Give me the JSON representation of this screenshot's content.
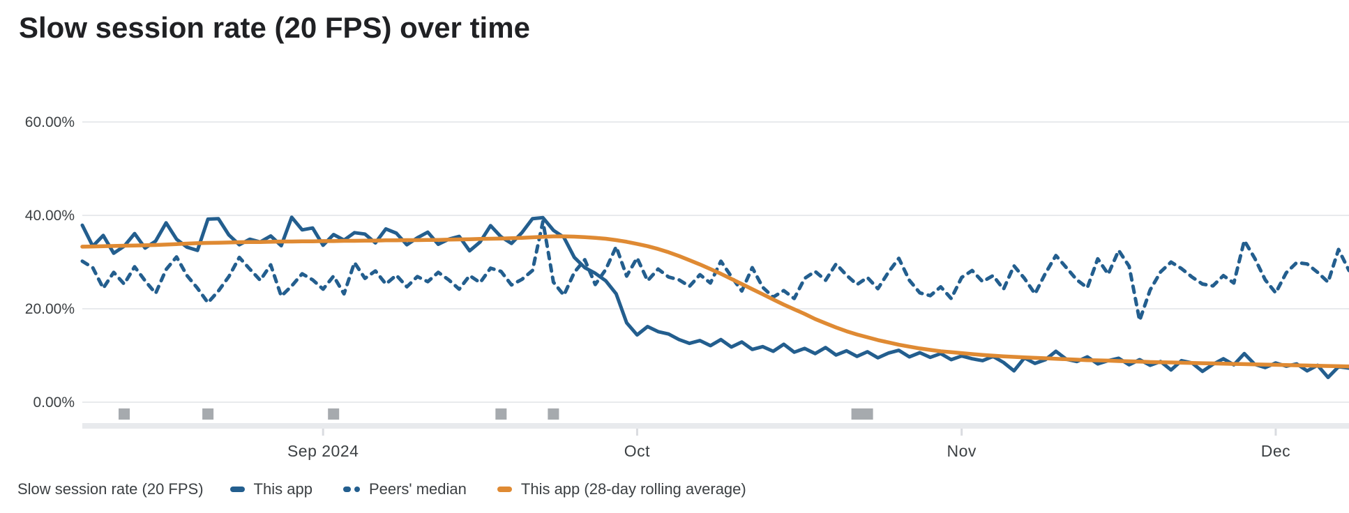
{
  "header": {
    "title": "Slow session rate (20 FPS) over time"
  },
  "legend": {
    "metric_label": "Slow session rate (20 FPS)",
    "items": [
      {
        "label": "This app",
        "color": "#235e8e",
        "style": "solid"
      },
      {
        "label": "Peers' median",
        "color": "#235e8e",
        "style": "dashed"
      },
      {
        "label": "This app (28-day rolling average)",
        "color": "#df8a33",
        "style": "solid"
      }
    ]
  },
  "colors": {
    "app_line": "#235e8e",
    "peers_line": "#235e8e",
    "rolling_line": "#df8a33",
    "gridline": "#e8eaed",
    "axis_band": "#e8eaed",
    "axis_tick": "#dadce0",
    "axis_text": "#3c4043",
    "title_text": "#202124",
    "release_marker": "#a6aaae"
  },
  "chart_data": {
    "type": "line",
    "title": "Slow session rate (20 FPS) over time",
    "xlabel": "",
    "ylabel": "Slow session rate (20 FPS)",
    "x_unit": "day",
    "x_start_date": "2024-08-09",
    "x_end_date": "2024-12-08",
    "ylim": [
      0,
      60
    ],
    "grid": "horizontal",
    "legend_position": "bottom",
    "y_ticks": [
      {
        "value": 60,
        "label": "60.00%"
      },
      {
        "value": 40,
        "label": "40.00%"
      },
      {
        "value": 20,
        "label": "20.00%"
      },
      {
        "value": 0,
        "label": "0.00%"
      }
    ],
    "x_ticks": [
      {
        "day": 23,
        "label": "Sep 2024"
      },
      {
        "day": 53,
        "label": "Oct"
      },
      {
        "day": 84,
        "label": "Nov"
      },
      {
        "day": 114,
        "label": "Dec"
      }
    ],
    "series": [
      {
        "name": "This app",
        "color": "#235e8e",
        "dash": false,
        "width": 5,
        "values": [
          37.9,
          33.4,
          35.7,
          31.9,
          33.4,
          36.1,
          33.0,
          34.5,
          38.4,
          34.9,
          33.2,
          32.5,
          39.2,
          39.3,
          35.8,
          33.7,
          34.9,
          34.3,
          35.6,
          33.5,
          39.6,
          36.9,
          37.3,
          33.6,
          35.9,
          34.7,
          36.3,
          36.0,
          34.1,
          37.1,
          36.2,
          33.7,
          35.2,
          36.4,
          33.8,
          34.9,
          35.5,
          32.4,
          34.3,
          37.8,
          35.4,
          34.0,
          36.3,
          39.3,
          39.5,
          36.8,
          35.3,
          31.0,
          28.8,
          27.6,
          26.0,
          23.2,
          17.0,
          14.4,
          16.2,
          15.1,
          14.6,
          13.4,
          12.6,
          13.2,
          12.1,
          13.4,
          11.8,
          12.9,
          11.3,
          11.9,
          10.9,
          12.4,
          10.7,
          11.5,
          10.4,
          11.7,
          10.1,
          11.0,
          9.8,
          10.8,
          9.5,
          10.5,
          11.1,
          9.7,
          10.6,
          9.6,
          10.4,
          9.1,
          9.9,
          9.3,
          8.9,
          9.8,
          8.5,
          6.7,
          9.5,
          8.3,
          9.1,
          10.9,
          9.2,
          8.7,
          9.7,
          8.2,
          8.9,
          9.4,
          8.0,
          9.1,
          7.9,
          8.7,
          6.9,
          8.9,
          8.4,
          6.6,
          8.1,
          9.3,
          8.0,
          10.4,
          8.1,
          7.4,
          8.4,
          7.7,
          8.2,
          6.7,
          7.9,
          5.3,
          7.6,
          7.3
        ]
      },
      {
        "name": "Peers' median",
        "color": "#235e8e",
        "dash": true,
        "width": 5,
        "values": [
          30.2,
          28.8,
          24.4,
          27.8,
          25.3,
          29.0,
          26.0,
          23.3,
          28.4,
          31.1,
          27.1,
          24.4,
          21.3,
          23.8,
          26.9,
          31.0,
          28.5,
          26.1,
          29.4,
          22.7,
          24.9,
          27.5,
          26.2,
          24.2,
          27.0,
          23.2,
          29.9,
          26.5,
          28.1,
          25.3,
          27.2,
          24.7,
          26.9,
          25.8,
          27.8,
          26.2,
          24.2,
          27.1,
          25.6,
          28.7,
          28.0,
          25.1,
          26.3,
          28.2,
          38.7,
          25.7,
          22.9,
          27.8,
          30.5,
          25.2,
          28.4,
          33.3,
          27.0,
          30.9,
          26.0,
          28.5,
          26.8,
          26.2,
          24.8,
          27.3,
          25.5,
          30.2,
          26.9,
          23.8,
          28.8,
          24.6,
          22.5,
          23.9,
          22.2,
          26.5,
          28.0,
          26.1,
          29.6,
          27.2,
          25.2,
          26.7,
          24.3,
          27.8,
          30.8,
          26.1,
          23.4,
          22.8,
          24.7,
          22.2,
          26.7,
          28.2,
          25.8,
          27.1,
          24.2,
          29.2,
          26.5,
          23.2,
          27.6,
          31.4,
          28.8,
          26.2,
          24.5,
          30.7,
          27.4,
          32.5,
          29.1,
          17.5,
          24.0,
          27.9,
          30.0,
          28.6,
          26.8,
          25.3,
          24.9,
          27.1,
          25.5,
          34.6,
          30.8,
          26.2,
          23.4,
          27.7,
          29.9,
          29.6,
          27.8,
          25.7,
          32.7,
          28.2
        ]
      },
      {
        "name": "This app (28-day rolling average)",
        "color": "#df8a33",
        "dash": false,
        "width": 5.5,
        "values": [
          33.3,
          33.35,
          33.4,
          33.45,
          33.5,
          33.55,
          33.6,
          33.65,
          33.75,
          33.85,
          33.95,
          34.05,
          34.1,
          34.15,
          34.2,
          34.25,
          34.3,
          34.3,
          34.35,
          34.4,
          34.4,
          34.45,
          34.45,
          34.5,
          34.5,
          34.55,
          34.55,
          34.6,
          34.6,
          34.65,
          34.65,
          34.7,
          34.7,
          34.75,
          34.75,
          34.8,
          34.85,
          34.9,
          34.95,
          35.0,
          35.05,
          35.1,
          35.2,
          35.3,
          35.4,
          35.5,
          35.5,
          35.45,
          35.35,
          35.2,
          35.0,
          34.7,
          34.35,
          33.9,
          33.4,
          32.8,
          32.1,
          31.3,
          30.4,
          29.5,
          28.5,
          27.5,
          26.4,
          25.3,
          24.2,
          23.1,
          22.0,
          20.9,
          19.9,
          18.9,
          17.8,
          16.9,
          16.0,
          15.2,
          14.5,
          13.9,
          13.3,
          12.8,
          12.3,
          11.9,
          11.5,
          11.2,
          10.9,
          10.7,
          10.5,
          10.3,
          10.1,
          9.95,
          9.8,
          9.7,
          9.6,
          9.5,
          9.4,
          9.3,
          9.2,
          9.1,
          9.0,
          8.95,
          8.9,
          8.8,
          8.75,
          8.7,
          8.6,
          8.55,
          8.5,
          8.45,
          8.4,
          8.35,
          8.3,
          8.25,
          8.2,
          8.15,
          8.1,
          8.05,
          8.0,
          7.95,
          7.9,
          7.85,
          7.8,
          7.75,
          7.7,
          7.65
        ]
      }
    ],
    "release_markers": {
      "color": "#a6aaae",
      "days": [
        4,
        12,
        24,
        40,
        45,
        74,
        75
      ]
    }
  }
}
